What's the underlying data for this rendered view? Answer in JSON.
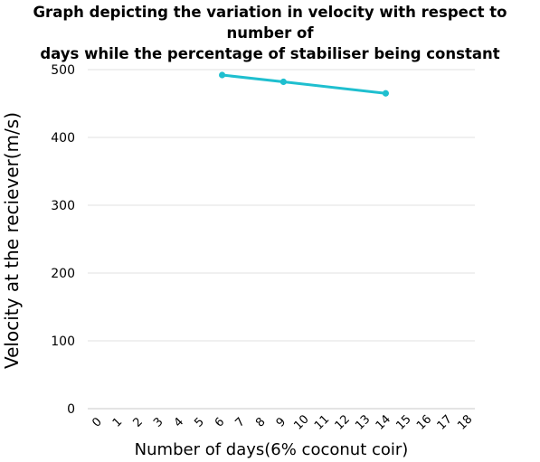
{
  "chart_data": {
    "type": "line",
    "title": "Graph depicting the variation in velocity with respect to number of\ndays while the percentage of stabiliser being constant",
    "xlabel": "Number of days(6% coconut coir)",
    "ylabel": "Velocity at the reciever(m/s)",
    "x_categories": [
      "0",
      "1",
      "2",
      "3",
      "4",
      "5",
      "6",
      "7",
      "8",
      "9",
      "10",
      "11",
      "12",
      "13",
      "14",
      "15",
      "16",
      "17",
      "18"
    ],
    "yticks": [
      "0",
      "100",
      "200",
      "300",
      "400",
      "500"
    ],
    "ylim": [
      0,
      500
    ],
    "grid": true,
    "series": [
      {
        "color": "#1fbfcf",
        "x": [
          6,
          9,
          14
        ],
        "y": [
          492,
          482,
          465
        ]
      }
    ]
  }
}
